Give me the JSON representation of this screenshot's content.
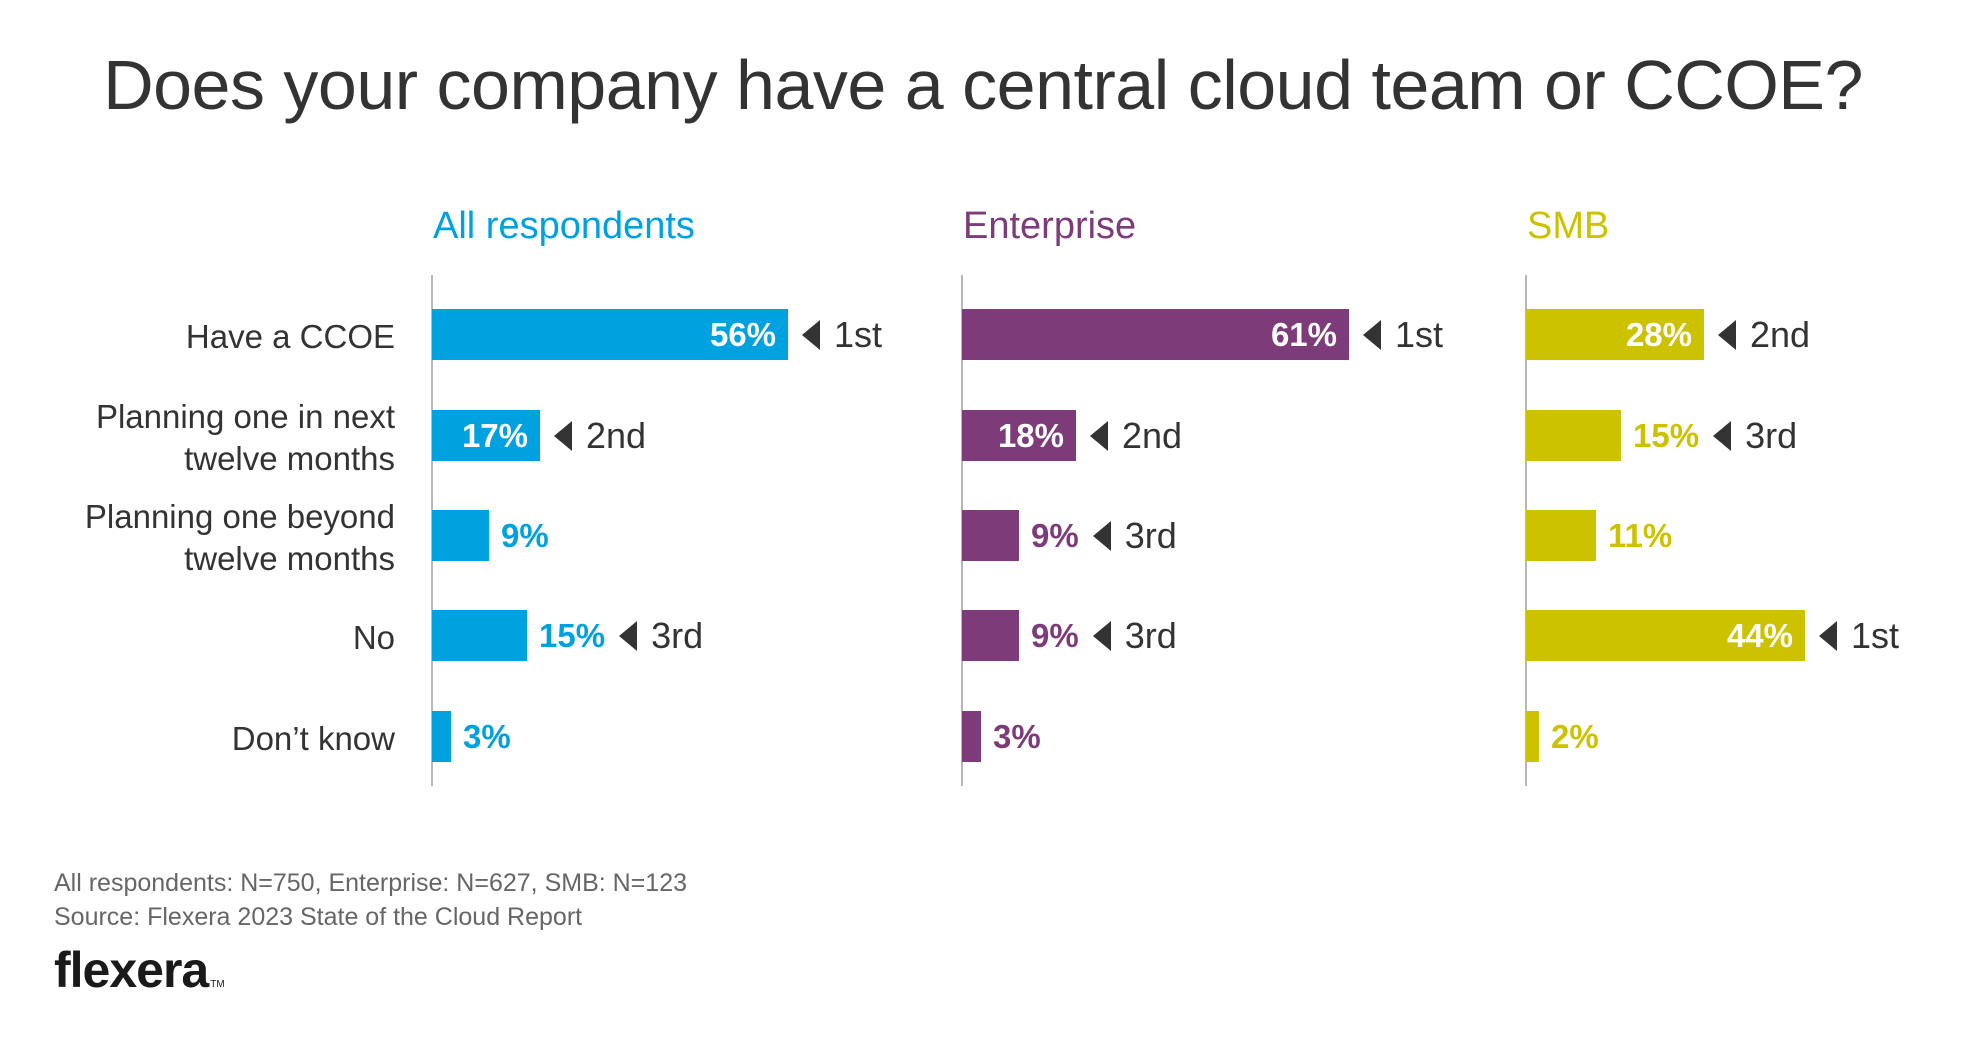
{
  "title": "Does your company have a central cloud team or CCOE?",
  "footer": {
    "sample_sizes": "All respondents: N=750, Enterprise: N=627, SMB: N=123",
    "source": "Source: Flexera 2023 State of the Cloud Report",
    "logo": "flexera",
    "logo_mark": "TM"
  },
  "chart_data": {
    "type": "bar",
    "orientation": "horizontal",
    "title": "Does your company have a central cloud team or CCOE?",
    "categories": [
      "Have a CCOE",
      "Planning one in next twelve months",
      "Planning one beyond twelve months",
      "No",
      "Don’t know"
    ],
    "category_lines": [
      [
        "Have a CCOE"
      ],
      [
        "Planning one in next",
        "twelve months"
      ],
      [
        "Planning one beyond",
        "twelve months"
      ],
      [
        "No"
      ],
      [
        "Don’t know"
      ]
    ],
    "unit": "%",
    "xlim": [
      0,
      100
    ],
    "grid": false,
    "series": [
      {
        "name": "All respondents",
        "color": "#00A1DF",
        "values": [
          56,
          17,
          9,
          15,
          3
        ],
        "labels": [
          "56%",
          "17%",
          "9%",
          "15%",
          "3%"
        ],
        "ranks": [
          "1st",
          "2nd",
          "",
          "3rd",
          ""
        ]
      },
      {
        "name": "Enterprise",
        "color": "#7E3B7A",
        "values": [
          61,
          18,
          9,
          9,
          3
        ],
        "labels": [
          "61%",
          "18%",
          "9%",
          "9%",
          "3%"
        ],
        "ranks": [
          "1st",
          "2nd",
          "3rd",
          "3rd",
          ""
        ]
      },
      {
        "name": "SMB",
        "color": "#CCC200",
        "values": [
          28,
          15,
          11,
          44,
          2
        ],
        "labels": [
          "28%",
          "15%",
          "11%",
          "44%",
          "2%"
        ],
        "ranks": [
          "2nd",
          "3rd",
          "",
          "1st",
          ""
        ]
      }
    ]
  }
}
